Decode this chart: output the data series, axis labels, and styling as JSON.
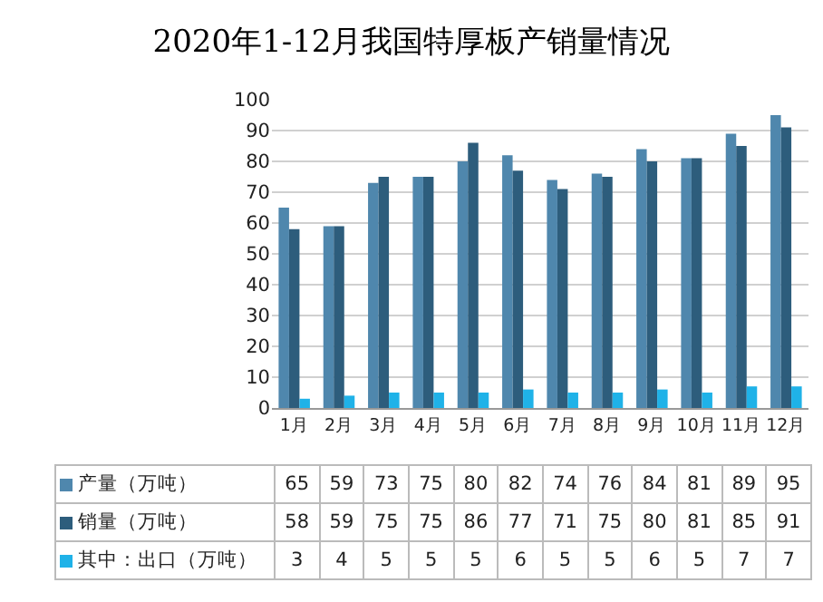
{
  "chart_data": {
    "type": "bar",
    "title": "2020年1-12月我国特厚板产销量情况",
    "categories": [
      "1月",
      "2月",
      "3月",
      "4月",
      "5月",
      "6月",
      "7月",
      "8月",
      "9月",
      "10月",
      "11月",
      "12月"
    ],
    "series": [
      {
        "name": "产量（万吨）",
        "color": "#4f87ad",
        "values": [
          65,
          59,
          73,
          75,
          80,
          82,
          74,
          76,
          84,
          81,
          89,
          95
        ]
      },
      {
        "name": "销量（万吨）",
        "color": "#2d5d7c",
        "values": [
          58,
          59,
          75,
          75,
          86,
          77,
          71,
          75,
          80,
          81,
          85,
          91
        ]
      },
      {
        "name": "其中：出口（万吨）",
        "color": "#1fb2e8",
        "values": [
          3,
          4,
          5,
          5,
          5,
          6,
          5,
          5,
          6,
          5,
          7,
          7
        ]
      }
    ],
    "ylim": [
      0,
      100
    ],
    "yticks": [
      0,
      10,
      20,
      30,
      40,
      50,
      60,
      70,
      80,
      90,
      100
    ],
    "grid": "y",
    "legend": "bottom",
    "data_labels": true
  }
}
